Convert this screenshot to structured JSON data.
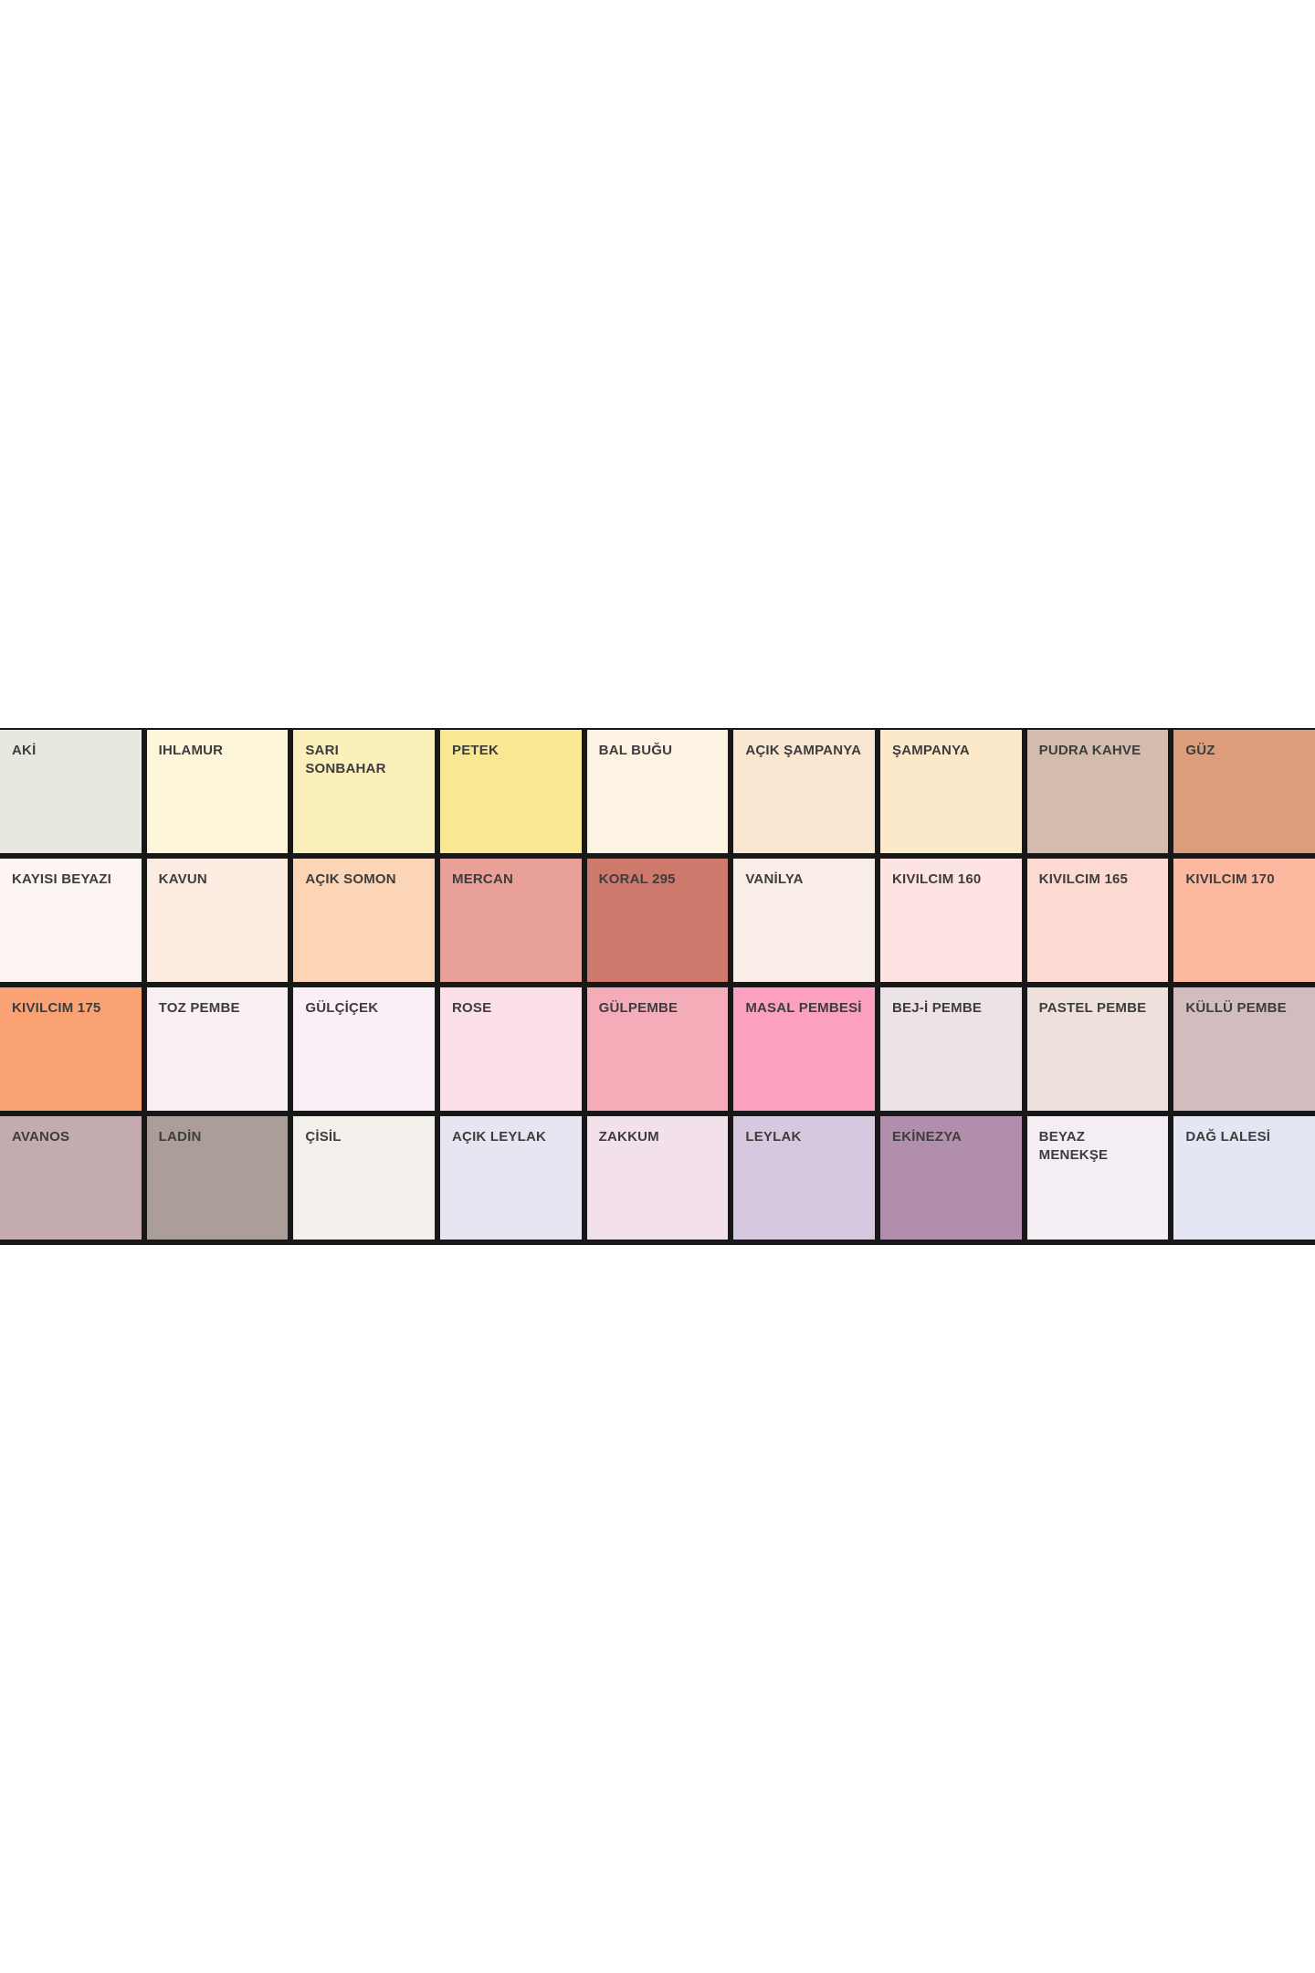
{
  "chart_data": {
    "type": "table",
    "title": "",
    "description": "Paint color swatch palette grid, 4 rows x 9 columns, Turkish paint color names, each cell filled with its color",
    "row_count": 4,
    "column_count": 9,
    "label_text_color": "#3d3d3d",
    "grid_line_color": "#181818",
    "rows": [
      {
        "cells": [
          {
            "name": "AKİ",
            "hex": "#e8e8e1"
          },
          {
            "name": "IHLAMUR",
            "hex": "#fdf6da"
          },
          {
            "name": "SARI\nSONBAHAR",
            "hex": "#faf0ba"
          },
          {
            "name": "PETEK",
            "hex": "#f8e892"
          },
          {
            "name": "BAL BUĞU",
            "hex": "#fdf3e2"
          },
          {
            "name": "AÇIK ŞAMPANYA",
            "hex": "#f9e7d2"
          },
          {
            "name": "ŞAMPANYA",
            "hex": "#fbe9ca"
          },
          {
            "name": "PUDRA KAHVE",
            "hex": "#d3bcae"
          },
          {
            "name": "GÜZ",
            "hex": "#db9d7c"
          }
        ]
      },
      {
        "cells": [
          {
            "name": "KAYISI BEYAZI",
            "hex": "#fdf5f2"
          },
          {
            "name": "KAVUN",
            "hex": "#fcebe0"
          },
          {
            "name": "AÇIK SOMON",
            "hex": "#fcd5b6"
          },
          {
            "name": "MERCAN",
            "hex": "#e9a098"
          },
          {
            "name": "KORAL 295",
            "hex": "#cd796c"
          },
          {
            "name": "VANİLYA",
            "hex": "#f9ede8"
          },
          {
            "name": "KIVILCIM 160",
            "hex": "#fde4e2"
          },
          {
            "name": "KIVILCIM 165",
            "hex": "#fcd9d1"
          },
          {
            "name": "KIVILCIM 170",
            "hex": "#fdb8a0"
          }
        ]
      },
      {
        "cells": [
          {
            "name": "KIVILCIM 175",
            "hex": "#fba274"
          },
          {
            "name": "TOZ PEMBE",
            "hex": "#f9f0f4"
          },
          {
            "name": "GÜLÇİÇEK",
            "hex": "#faeef7"
          },
          {
            "name": "ROSE",
            "hex": "#fcdfe8"
          },
          {
            "name": "GÜLPEMBE",
            "hex": "#f4acb9"
          },
          {
            "name": "MASAL PEMBESİ",
            "hex": "#fba0be"
          },
          {
            "name": "BEJ-İ PEMBE",
            "hex": "#ebe3e6"
          },
          {
            "name": "PASTEL PEMBE",
            "hex": "#eee1dc"
          },
          {
            "name": "KÜLLÜ PEMBE",
            "hex": "#d2bcbe"
          }
        ]
      },
      {
        "cells": [
          {
            "name": "AVANOS",
            "hex": "#c3abb0"
          },
          {
            "name": "LADİN",
            "hex": "#ab9d97"
          },
          {
            "name": "ÇİSİL",
            "hex": "#f3f0ec"
          },
          {
            "name": "AÇIK LEYLAK",
            "hex": "#e8e4f1"
          },
          {
            "name": "ZAKKUM",
            "hex": "#f2e0eb"
          },
          {
            "name": "LEYLAK",
            "hex": "#d6c9df"
          },
          {
            "name": "EKİNEZYA",
            "hex": "#b08eac"
          },
          {
            "name": "BEYAZ\nMENEKŞE",
            "hex": "#f4eef4"
          },
          {
            "name": "DAĞ LALESİ",
            "hex": "#e4e6f4"
          }
        ]
      }
    ]
  }
}
